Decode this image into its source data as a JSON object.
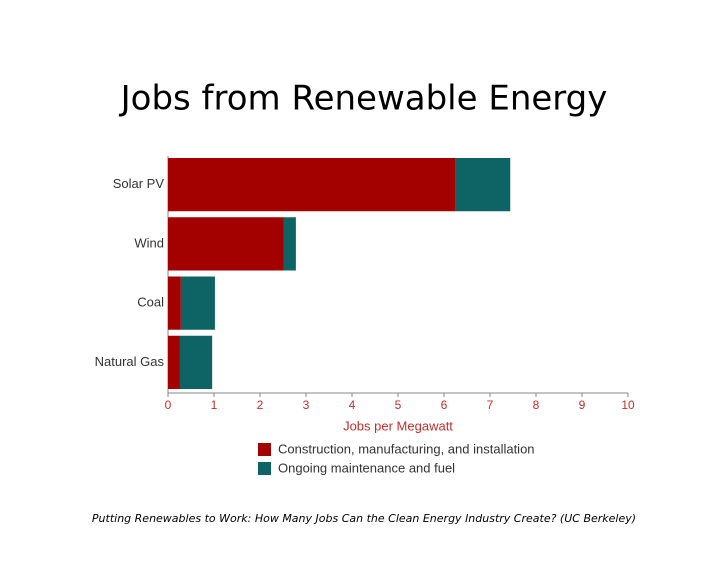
{
  "chart_data": {
    "type": "stacked-bar-horizontal",
    "title": "Jobs from Renewable Energy",
    "categories": [
      "Solar PV",
      "Wind",
      "Coal",
      "Natural Gas"
    ],
    "series": [
      {
        "name": "Construction, manufacturing, and installation",
        "color": "#a30000",
        "values": [
          6.24,
          2.52,
          0.28,
          0.26
        ]
      },
      {
        "name": "Ongoing maintenance and fuel",
        "color": "#0e6464",
        "values": [
          1.2,
          0.26,
          0.74,
          0.7
        ]
      }
    ],
    "xlabel": "Jobs per Megawatt",
    "xlim": [
      0,
      10
    ],
    "xticks": [
      0,
      1,
      2,
      3,
      4,
      5,
      6,
      7,
      8,
      9,
      10
    ],
    "source": "Putting Renewables to Work: How Many Jobs Can the Clean Energy Industry Create? (UC Berkeley)"
  }
}
